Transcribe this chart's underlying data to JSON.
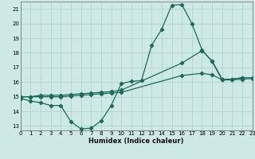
{
  "xlabel": "Humidex (Indice chaleur)",
  "bg_color": "#cee8e6",
  "grid_color": "#afd4d0",
  "line_color": "#1a6b5a",
  "xlim": [
    0,
    23
  ],
  "ylim": [
    12.7,
    21.5
  ],
  "xticks": [
    0,
    1,
    2,
    3,
    4,
    5,
    6,
    7,
    8,
    9,
    10,
    11,
    12,
    13,
    14,
    15,
    16,
    17,
    18,
    19,
    20,
    21,
    22,
    23
  ],
  "yticks": [
    13,
    14,
    15,
    16,
    17,
    18,
    19,
    20,
    21
  ],
  "curve1_x": [
    0,
    1,
    2,
    3,
    4,
    5,
    6,
    7,
    8,
    9,
    10,
    11,
    12,
    13,
    14,
    15,
    16,
    17,
    18,
    19,
    20,
    21,
    22
  ],
  "curve1_y": [
    14.9,
    14.7,
    14.6,
    14.4,
    14.4,
    13.3,
    12.8,
    12.85,
    13.35,
    14.4,
    15.9,
    16.05,
    16.1,
    18.5,
    19.6,
    21.25,
    21.3,
    20.0,
    18.2,
    17.4,
    16.15,
    16.2,
    16.3
  ],
  "curve2_x": [
    0,
    1,
    2,
    3,
    4,
    5,
    6,
    7,
    8,
    9,
    10,
    16,
    18,
    19,
    20,
    21,
    22,
    23
  ],
  "curve2_y": [
    15.0,
    15.0,
    15.1,
    15.1,
    15.1,
    15.15,
    15.2,
    15.25,
    15.3,
    15.35,
    15.45,
    17.3,
    18.15,
    17.45,
    16.2,
    16.2,
    16.3,
    16.3
  ],
  "curve3_x": [
    0,
    1,
    2,
    3,
    4,
    5,
    6,
    7,
    8,
    9,
    10,
    16,
    18,
    19,
    20,
    21,
    22,
    23
  ],
  "curve3_y": [
    15.0,
    15.0,
    15.0,
    15.0,
    15.0,
    15.05,
    15.1,
    15.15,
    15.2,
    15.25,
    15.3,
    16.45,
    16.6,
    16.5,
    16.15,
    16.15,
    16.2,
    16.25
  ]
}
